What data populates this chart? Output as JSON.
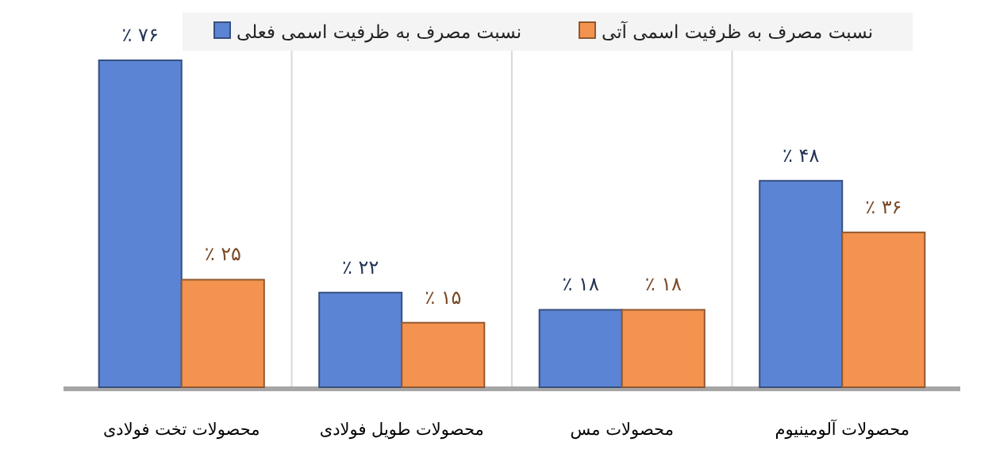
{
  "chart_data": {
    "type": "bar",
    "categories": [
      "محصولات تخت فولادی",
      "محصولات طویل فولادی",
      "محصولات مس",
      "محصولات آلومینیوم"
    ],
    "series": [
      {
        "name": "نسبت مصرف به ظرفیت اسمی فعلی",
        "color": "#5b84d4",
        "values": [
          76,
          22,
          18,
          48
        ],
        "value_labels": [
          "٪ ۷۶",
          "٪ ۲۲",
          "٪ ۱۸",
          "٪ ۴۸"
        ]
      },
      {
        "name": "نسبت مصرف به ظرفیت اسمی آتی",
        "color": "#f4934f",
        "values": [
          25,
          15,
          18,
          36
        ],
        "value_labels": [
          "٪ ۲۵",
          "٪ ۱۵",
          "٪ ۱۸",
          "٪ ۳۶"
        ]
      }
    ],
    "legend": "top",
    "grid": "x"
  }
}
